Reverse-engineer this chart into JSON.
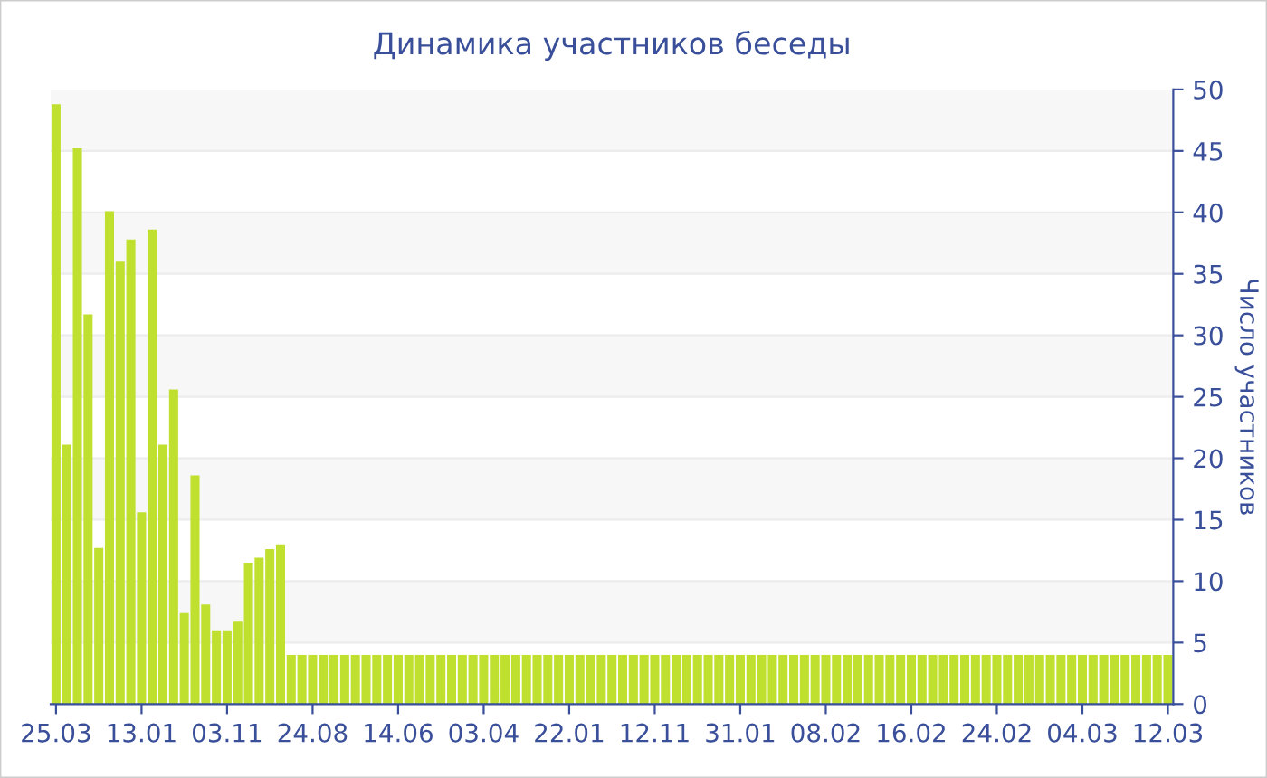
{
  "chart_data": {
    "type": "bar",
    "title": "Динамика участников беседы",
    "ylabel": "Число участников",
    "categories": [
      "25.03",
      null,
      null,
      null,
      null,
      null,
      null,
      null,
      "13.01",
      null,
      null,
      null,
      null,
      null,
      null,
      null,
      "03.11",
      null,
      null,
      null,
      null,
      null,
      null,
      null,
      "24.08",
      null,
      null,
      null,
      null,
      null,
      null,
      null,
      "14.06",
      null,
      null,
      null,
      null,
      null,
      null,
      null,
      "03.04",
      null,
      null,
      null,
      null,
      null,
      null,
      null,
      "22.01",
      null,
      null,
      null,
      null,
      null,
      null,
      null,
      "12.11",
      null,
      null,
      null,
      null,
      null,
      null,
      null,
      "31.01",
      null,
      null,
      null,
      null,
      null,
      null,
      null,
      "08.02",
      null,
      null,
      null,
      null,
      null,
      null,
      null,
      "16.02",
      null,
      null,
      null,
      null,
      null,
      null,
      null,
      "24.02",
      null,
      null,
      null,
      null,
      null,
      null,
      null,
      "04.03",
      null,
      null,
      null,
      null,
      null,
      null,
      null,
      "12.03"
    ],
    "values": [
      48.8,
      21.1,
      45.2,
      31.7,
      12.7,
      40.1,
      36.0,
      37.8,
      15.6,
      38.6,
      21.1,
      25.6,
      7.4,
      18.6,
      8.1,
      6.0,
      6.0,
      6.7,
      11.5,
      11.9,
      12.6,
      13.0,
      4,
      4,
      4,
      4,
      4,
      4,
      4,
      4,
      4,
      4,
      4,
      4,
      4,
      4,
      4,
      4,
      4,
      4,
      4,
      4,
      4,
      4,
      4,
      4,
      4,
      4,
      4,
      4,
      4,
      4,
      4,
      4,
      4,
      4,
      4,
      4,
      4,
      4,
      4,
      4,
      4,
      4,
      4,
      4,
      4,
      4,
      4,
      4,
      4,
      4,
      4,
      4,
      4,
      4,
      4,
      4,
      4,
      4,
      4,
      4,
      4,
      4,
      4,
      4,
      4,
      4,
      4,
      4,
      4,
      4,
      4,
      4,
      4,
      4,
      4,
      4,
      4,
      4,
      4,
      4,
      4,
      4,
      4
    ],
    "color": "#bfe02e",
    "ylim": [
      0,
      50
    ],
    "yticks": [
      0,
      5,
      10,
      15,
      20,
      25,
      30,
      35,
      40,
      45,
      50
    ],
    "grid": "y"
  }
}
